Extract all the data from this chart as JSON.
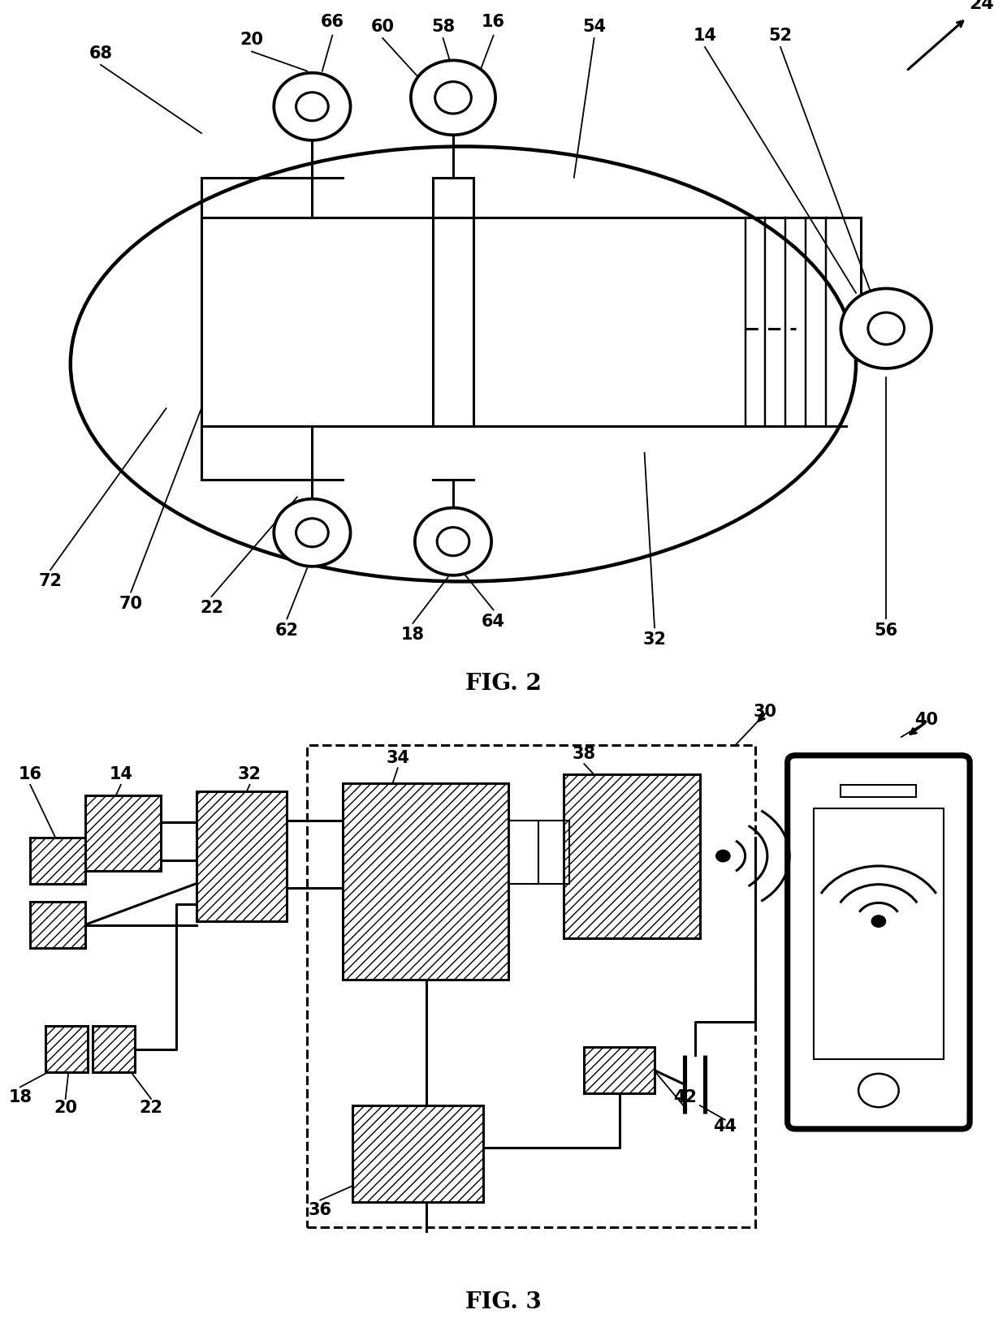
{
  "fig_width": 12.4,
  "fig_height": 16.51,
  "bg_color": "#ffffff",
  "line_color": "#000000",
  "label_fontsize": 14,
  "title_fontsize": 18
}
